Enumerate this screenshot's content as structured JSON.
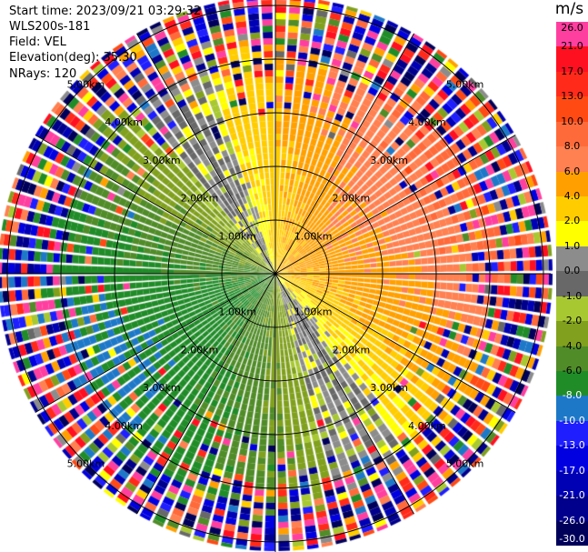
{
  "info": {
    "start_time": "Start time: 2023/09/21 03:29:32",
    "instrument": "WLS200s-181",
    "field": "Field: VEL",
    "elevation": "Elevation(deg): 35.30",
    "nrays": "NRays: 120"
  },
  "colorbar": {
    "unit": "m/s",
    "ticks": [
      "26.0",
      "21.0",
      "17.0",
      "13.0",
      "10.0",
      "8.0",
      "6.0",
      "4.0",
      "2.0",
      "1.0",
      "0.0",
      "-1.0",
      "-2.0",
      "-4.0",
      "-6.0",
      "-8.0",
      "-10.0",
      "-13.0",
      "-17.0",
      "-21.0",
      "-26.0",
      "-30.0"
    ],
    "colors": [
      "#ff3fa0",
      "#ff1020",
      "#ff2a1a",
      "#ff4a14",
      "#ff6a3a",
      "#ff8050",
      "#ffa000",
      "#ffcc00",
      "#ffff00",
      "#8c8c8c",
      "#686868",
      "#a8c832",
      "#80a01e",
      "#508c28",
      "#208c28",
      "#1e78c8",
      "#1e1eff",
      "#0000e0",
      "#0000b4",
      "#00008c",
      "#00005a"
    ]
  },
  "chart_data": {
    "type": "heatmap",
    "projection": "polar",
    "field": "VEL",
    "unit": "m/s",
    "nrays": 120,
    "range_rings_km": [
      1.0,
      2.0,
      3.0,
      4.0,
      5.0
    ],
    "ring_labels": [
      "1.00km",
      "2.00km",
      "3.00km",
      "4.00km",
      "5.00km"
    ],
    "color_scale": [
      -30.0,
      26.0
    ],
    "pattern": {
      "positive_sector_deg": [
        0,
        130
      ],
      "negative_sector_deg": [
        180,
        300
      ],
      "positive_center_ms": 3.5,
      "negative_center_ms": -5.5,
      "noise_beyond_km": 3.8
    }
  }
}
